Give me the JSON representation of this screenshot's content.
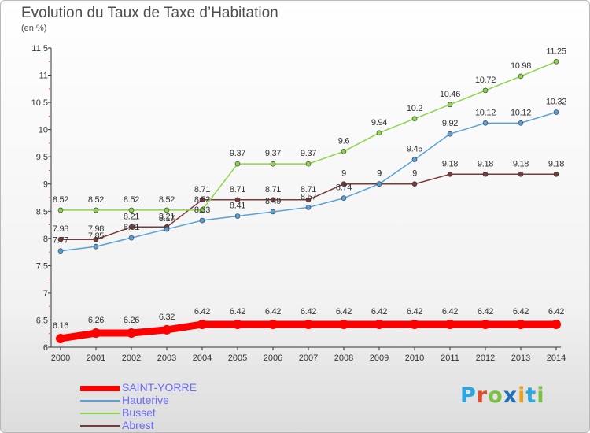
{
  "chart_data": {
    "type": "line",
    "title": "Evolution du Taux de Taxe d’Habitation",
    "ylabel": "(en %)",
    "categories": [
      "2000",
      "2001",
      "2002",
      "2003",
      "2004",
      "2005",
      "2006",
      "2007",
      "2008",
      "2009",
      "2010",
      "2011",
      "2012",
      "2013",
      "2014"
    ],
    "ylim": [
      6,
      11.5
    ],
    "yticks": [
      "6",
      "6.5",
      "7",
      "7.5",
      "8",
      "8.5",
      "9",
      "9.5",
      "10",
      "10.5",
      "11",
      "11.5"
    ],
    "grid": false,
    "legend_position": "bottom-left",
    "series": [
      {
        "name": "SAINT-YORRE",
        "color": "#ff0000",
        "values": [
          6.16,
          6.26,
          6.26,
          6.32,
          6.42,
          6.42,
          6.42,
          6.42,
          6.42,
          6.42,
          6.42,
          6.42,
          6.42,
          6.42,
          6.42
        ],
        "labels": [
          "6.16",
          "6.26",
          "6.26",
          "6.32",
          "6.42",
          "6.42",
          "6.42",
          "6.42",
          "6.42",
          "6.42",
          "6.42",
          "6.42",
          "6.42",
          "6.42",
          "6.42"
        ]
      },
      {
        "name": "Hauterive",
        "color": "#5aa0d8",
        "values": [
          7.77,
          7.85,
          8.01,
          8.17,
          8.33,
          8.41,
          8.49,
          8.57,
          8.74,
          9,
          9.45,
          9.92,
          10.12,
          10.12,
          10.32
        ],
        "labels": [
          "7.77",
          "7.85",
          "8.01",
          "8.17",
          "8.33",
          "8.41",
          "8.49",
          "8.57",
          "8.74",
          "9",
          "9.45",
          "9.92",
          "10.12",
          "10.12",
          "10.32"
        ]
      },
      {
        "name": "Busset",
        "color": "#8ed44a",
        "values": [
          8.52,
          8.52,
          8.52,
          8.52,
          8.52,
          9.37,
          9.37,
          9.37,
          9.6,
          9.94,
          10.2,
          10.46,
          10.72,
          10.98,
          11.25
        ],
        "labels": [
          "8.52",
          "8.52",
          "8.52",
          "8.52",
          "8.52",
          "9.37",
          "9.37",
          "9.37",
          "9.6",
          "9.94",
          "10.2",
          "10.46",
          "10.72",
          "10.98",
          "11.25"
        ]
      },
      {
        "name": "Abrest",
        "color": "#7a3a3a",
        "values": [
          7.98,
          7.98,
          8.21,
          8.21,
          8.71,
          8.71,
          8.71,
          8.71,
          9,
          9,
          9,
          9.18,
          9.18,
          9.18,
          9.18
        ],
        "labels": [
          "7.98",
          "7.98",
          "8.21",
          "8.21",
          "8.71",
          "8.71",
          "8.71",
          "8.71",
          "9",
          "9",
          "9",
          "9.18",
          "9.18",
          "9.18",
          "9.18"
        ]
      }
    ]
  },
  "brand": {
    "text": "Proxiti",
    "colors": [
      "#2aa6e0",
      "#e04b2a",
      "#7ac142",
      "#1f6fb8",
      "#e8a21c",
      "#2aa6e0",
      "#7ac142"
    ]
  }
}
